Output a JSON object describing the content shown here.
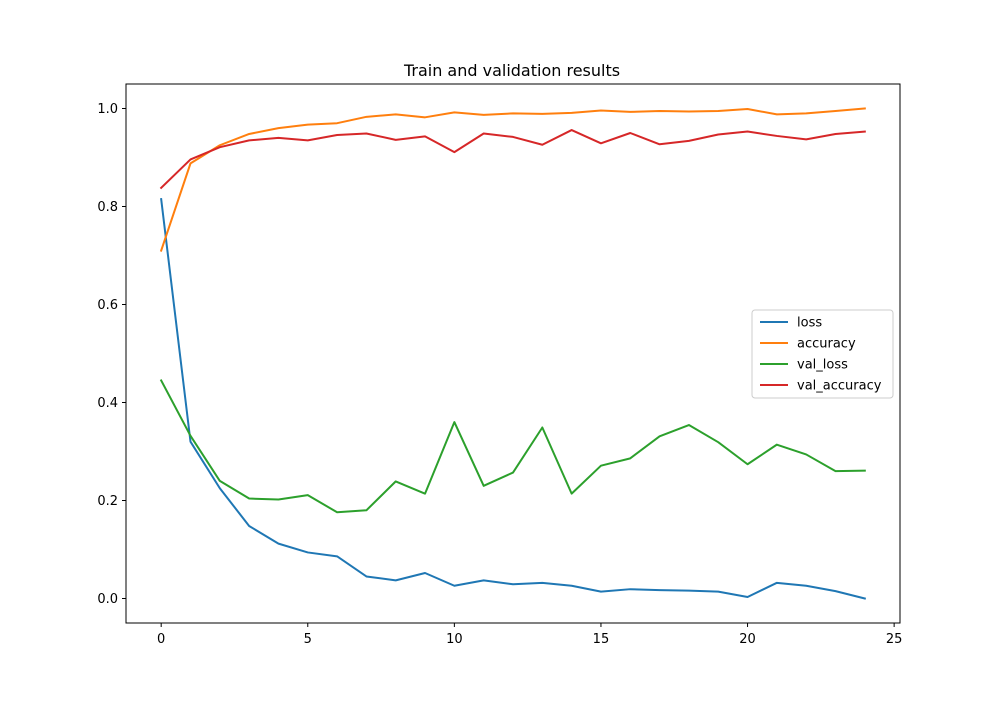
{
  "chart_data": {
    "type": "line",
    "title": "Train and validation results",
    "xlabel": "",
    "ylabel": "",
    "xlim": [
      -1.2,
      25.2
    ],
    "ylim": [
      -0.05,
      1.05
    ],
    "xticks": [
      0,
      5,
      10,
      15,
      20,
      25
    ],
    "yticks": [
      0.0,
      0.2,
      0.4,
      0.6,
      0.8,
      1.0
    ],
    "xtick_labels": [
      "0",
      "5",
      "10",
      "15",
      "20",
      "25"
    ],
    "ytick_labels": [
      "0.0",
      "0.2",
      "0.4",
      "0.6",
      "0.8",
      "1.0"
    ],
    "grid": false,
    "legend_position": "center-right",
    "x": [
      0,
      1,
      2,
      3,
      4,
      5,
      6,
      7,
      8,
      9,
      10,
      11,
      12,
      13,
      14,
      15,
      16,
      17,
      18,
      19,
      20,
      21,
      22,
      23,
      24
    ],
    "series": [
      {
        "name": "loss",
        "color": "#1f77b4",
        "values": [
          0.815,
          0.32,
          0.225,
          0.148,
          0.112,
          0.094,
          0.086,
          0.045,
          0.037,
          0.052,
          0.026,
          0.037,
          0.029,
          0.032,
          0.026,
          0.014,
          0.019,
          0.017,
          0.016,
          0.014,
          0.003,
          0.032,
          0.026,
          0.015,
          0.0
        ]
      },
      {
        "name": "accuracy",
        "color": "#ff7f0e",
        "values": [
          0.71,
          0.888,
          0.925,
          0.948,
          0.96,
          0.967,
          0.97,
          0.983,
          0.988,
          0.982,
          0.992,
          0.987,
          0.99,
          0.989,
          0.991,
          0.996,
          0.993,
          0.995,
          0.994,
          0.995,
          0.999,
          0.988,
          0.99,
          0.995,
          1.0
        ]
      },
      {
        "name": "val_loss",
        "color": "#2ca02c",
        "values": [
          0.445,
          0.332,
          0.24,
          0.204,
          0.202,
          0.211,
          0.176,
          0.18,
          0.239,
          0.214,
          0.36,
          0.23,
          0.257,
          0.349,
          0.214,
          0.271,
          0.286,
          0.331,
          0.354,
          0.319,
          0.274,
          0.314,
          0.294,
          0.26,
          0.261
        ]
      },
      {
        "name": "val_accuracy",
        "color": "#d62728",
        "values": [
          0.838,
          0.896,
          0.921,
          0.935,
          0.94,
          0.935,
          0.946,
          0.949,
          0.936,
          0.943,
          0.911,
          0.949,
          0.942,
          0.926,
          0.956,
          0.929,
          0.95,
          0.927,
          0.934,
          0.947,
          0.953,
          0.944,
          0.937,
          0.948,
          0.953
        ]
      }
    ]
  }
}
